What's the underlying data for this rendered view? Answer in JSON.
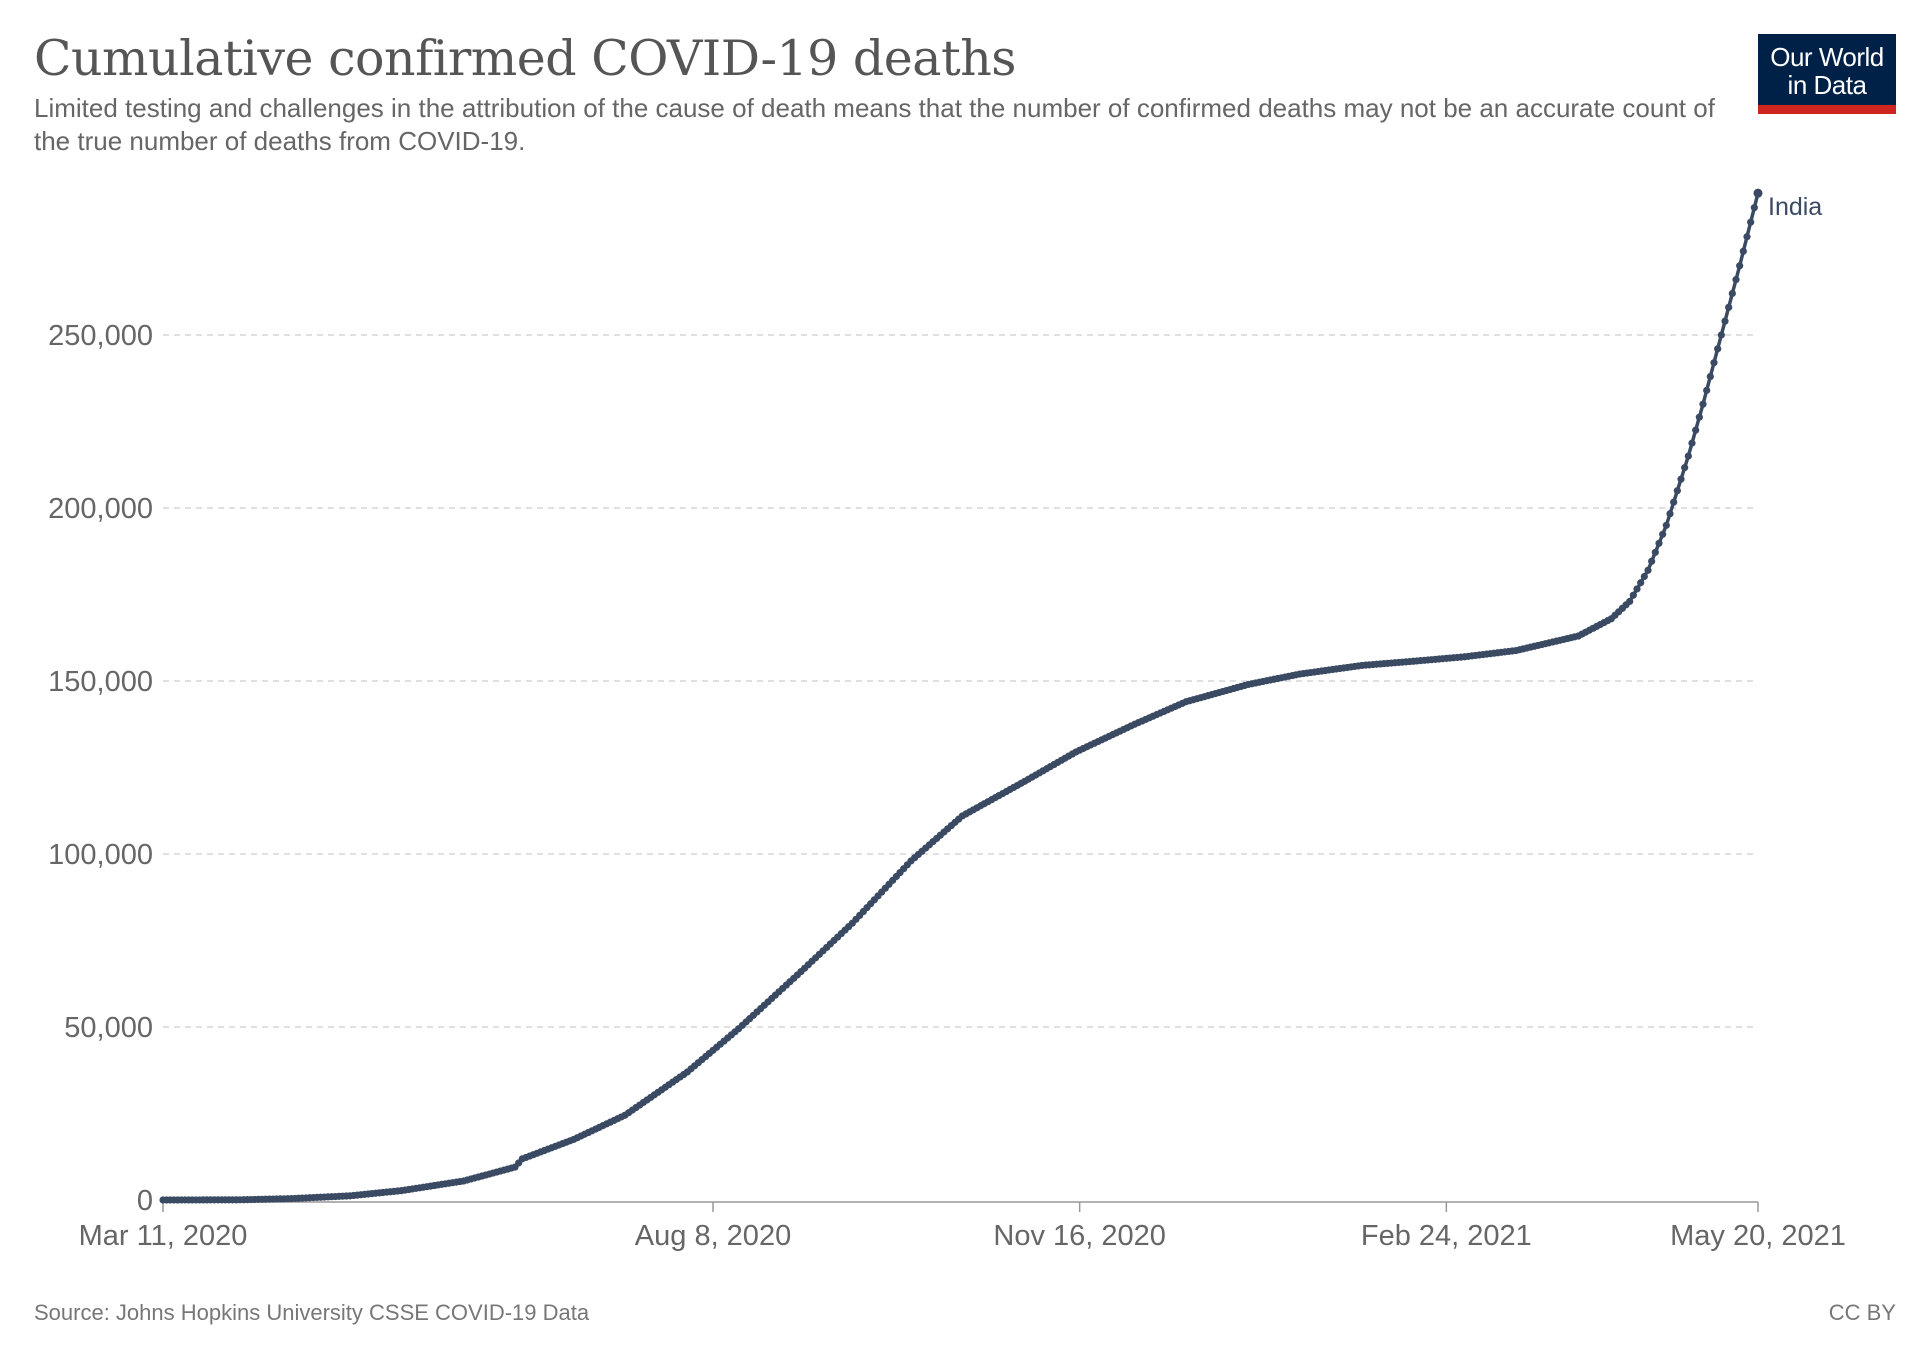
{
  "header": {
    "title": "Cumulative confirmed COVID-19 deaths",
    "subtitle": "Limited testing and challenges in the attribution of the cause of death means that the number of confirmed deaths may not be an accurate count of the true number of deaths from COVID-19."
  },
  "logo": {
    "line1": "Our World",
    "line2": "in Data"
  },
  "footer": {
    "source": "Source: Johns Hopkins University CSSE COVID-19 Data",
    "license": "CC BY"
  },
  "colors": {
    "series": "#3b4a63",
    "grid": "#d6d6d6",
    "axis_text": "#666666",
    "logo_bg": "#002147",
    "logo_bar": "#ce261e"
  },
  "chart_data": {
    "type": "line",
    "title": "Cumulative confirmed COVID-19 deaths",
    "xlabel": "",
    "ylabel": "",
    "x_type": "date",
    "xlim": [
      "2020-03-11",
      "2021-05-20"
    ],
    "ylim": [
      0,
      290000
    ],
    "x_ticks": [
      {
        "date": "2020-03-11",
        "label": "Mar 11, 2020"
      },
      {
        "date": "2020-08-08",
        "label": "Aug 8, 2020"
      },
      {
        "date": "2020-11-16",
        "label": "Nov 16, 2020"
      },
      {
        "date": "2021-02-24",
        "label": "Feb 24, 2021"
      },
      {
        "date": "2021-05-20",
        "label": "May 20, 2021"
      }
    ],
    "y_ticks": [
      {
        "value": 0,
        "label": "0"
      },
      {
        "value": 50000,
        "label": "50,000"
      },
      {
        "value": 100000,
        "label": "100,000"
      },
      {
        "value": 150000,
        "label": "150,000"
      },
      {
        "value": 200000,
        "label": "200,000"
      },
      {
        "value": 250000,
        "label": "250,000"
      }
    ],
    "grid": "horizontal dashed",
    "markers": true,
    "series": [
      {
        "name": "India",
        "points": [
          [
            "2020-03-11",
            0
          ],
          [
            "2020-04-01",
            50
          ],
          [
            "2020-04-15",
            400
          ],
          [
            "2020-05-01",
            1200
          ],
          [
            "2020-05-15",
            2700
          ],
          [
            "2020-06-01",
            5500
          ],
          [
            "2020-06-15",
            9500
          ],
          [
            "2020-06-17",
            11900
          ],
          [
            "2020-07-01",
            17500
          ],
          [
            "2020-07-15",
            24500
          ],
          [
            "2020-08-01",
            37000
          ],
          [
            "2020-08-15",
            49500
          ],
          [
            "2020-09-01",
            66000
          ],
          [
            "2020-09-15",
            80000
          ],
          [
            "2020-10-01",
            98000
          ],
          [
            "2020-10-15",
            111000
          ],
          [
            "2020-11-01",
            121000
          ],
          [
            "2020-11-15",
            129500
          ],
          [
            "2020-12-01",
            137500
          ],
          [
            "2020-12-15",
            144000
          ],
          [
            "2021-01-01",
            149000
          ],
          [
            "2021-01-15",
            152000
          ],
          [
            "2021-02-01",
            154500
          ],
          [
            "2021-02-15",
            155700
          ],
          [
            "2021-03-01",
            157000
          ],
          [
            "2021-03-15",
            158800
          ],
          [
            "2021-04-01",
            163000
          ],
          [
            "2021-04-10",
            168000
          ],
          [
            "2021-04-15",
            173000
          ],
          [
            "2021-04-20",
            182000
          ],
          [
            "2021-04-25",
            195000
          ],
          [
            "2021-05-01",
            215000
          ],
          [
            "2021-05-05",
            230000
          ],
          [
            "2021-05-10",
            250000
          ],
          [
            "2021-05-15",
            270000
          ],
          [
            "2021-05-20",
            291000
          ]
        ]
      }
    ]
  }
}
